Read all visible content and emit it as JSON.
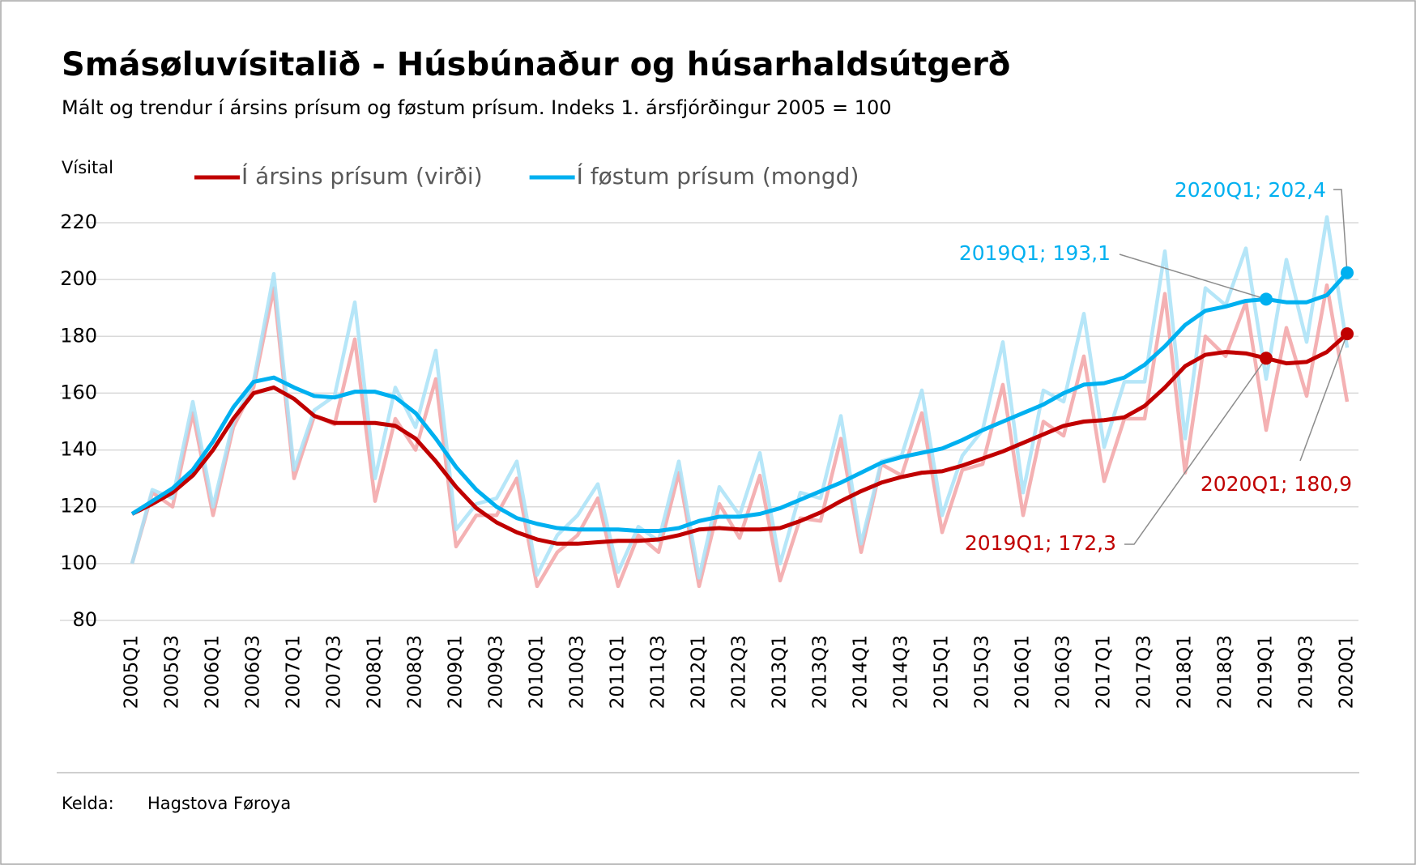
{
  "chart_data": {
    "type": "line",
    "title": "Smásøluvísitalið - Húsbúnaður og húsarhaldsútgerð",
    "subtitle": "Mált og trendur í ársins prísum og føstum prísum. Indeks 1. ársfjórðingur 2005 = 100",
    "y_label": "Vísital",
    "source_label": "Kelda:",
    "source": "Hagstova Føroya",
    "categories": [
      "2005Q1",
      null,
      "2005Q3",
      null,
      "2006Q1",
      null,
      "2006Q3",
      null,
      "2007Q1",
      null,
      "2007Q3",
      null,
      "2008Q1",
      null,
      "2008Q3",
      null,
      "2009Q1",
      null,
      "2009Q3",
      null,
      "2010Q1",
      null,
      "2010Q3",
      null,
      "2011Q1",
      null,
      "2011Q3",
      null,
      "2012Q1",
      null,
      "2012Q3",
      null,
      "2013Q1",
      null,
      "2013Q3",
      null,
      "2014Q1",
      null,
      "2014Q3",
      null,
      "2015Q1",
      null,
      "2015Q3",
      null,
      "2016Q1",
      null,
      "2016Q3",
      null,
      "2017Q1",
      null,
      "2017Q3",
      null,
      "2018Q1",
      null,
      "2018Q3",
      null,
      "2019Q1",
      null,
      "2019Q3",
      null,
      "2020Q1"
    ],
    "series": [
      {
        "color": "#f2a3a6",
        "values": [
          100,
          125,
          120,
          153,
          117,
          148,
          162,
          197,
          130,
          152,
          149,
          179,
          122,
          151,
          140,
          165,
          106,
          117,
          117,
          130,
          92,
          104,
          110,
          123,
          92,
          110,
          104,
          132,
          92,
          121,
          109,
          131,
          94,
          116,
          115,
          144,
          104,
          135,
          131,
          153,
          111,
          133,
          135,
          163,
          117,
          150,
          145,
          173,
          129,
          151,
          151,
          195,
          132,
          180,
          173,
          192,
          147,
          183,
          159,
          198,
          157
        ]
      },
      {
        "color": "#a9e2f7",
        "values": [
          100,
          126,
          123,
          157,
          120,
          150,
          164,
          202,
          133,
          154,
          159,
          192,
          130,
          162,
          148,
          175,
          112,
          121,
          123,
          136,
          96,
          110,
          117,
          128,
          97,
          113,
          108,
          136,
          95,
          127,
          117,
          139,
          100,
          125,
          123,
          152,
          107,
          136,
          138,
          161,
          117,
          138,
          147,
          178,
          125,
          161,
          157,
          188,
          141,
          164,
          164,
          210,
          144,
          197,
          191,
          211,
          165,
          207,
          178,
          222,
          176
        ]
      },
      {
        "name": "Í ársins prísum (virði)",
        "color": "#c00000",
        "values": [
          117.5,
          121,
          125,
          131,
          140,
          151,
          160,
          162,
          158,
          152,
          149.5,
          149.5,
          149.5,
          148.5,
          144,
          136,
          127,
          119.5,
          114.5,
          111,
          108.5,
          107,
          107,
          107.5,
          108,
          108,
          108.5,
          110,
          112,
          112.5,
          112,
          112,
          112.5,
          115,
          118,
          122,
          125.5,
          128.5,
          130.5,
          132,
          132.5,
          134.5,
          137,
          139.5,
          142.5,
          145.5,
          148.5,
          150,
          150.5,
          151.5,
          155.5,
          162,
          169.5,
          173.5,
          174.5,
          174,
          172.3,
          170.5,
          171,
          174.5,
          180.9
        ]
      },
      {
        "name": "Í føstum prísum (mongd)",
        "color": "#00b0f0",
        "values": [
          117.5,
          122,
          126.5,
          133,
          143,
          155,
          164,
          165.5,
          162,
          159,
          158.5,
          160.5,
          160.5,
          158.5,
          153,
          144,
          134,
          126,
          120,
          116,
          114,
          112.5,
          112,
          112,
          112,
          111.5,
          111.5,
          112.5,
          115,
          116.5,
          116.5,
          117.5,
          119.5,
          122.5,
          125.5,
          128.5,
          132,
          135.5,
          137.5,
          139,
          140.5,
          143.5,
          147,
          150,
          153,
          156,
          160,
          163,
          163.5,
          165.5,
          170,
          176.5,
          184,
          189,
          190.5,
          192.5,
          193.1,
          192,
          192,
          194.5,
          202.4
        ]
      }
    ],
    "annotations": [
      "2020Q1; 202,4",
      "2019Q1; 193,1",
      "2020Q1; 180,9",
      "2019Q1; 172,3"
    ],
    "ylim": [
      80,
      220
    ],
    "yticks": [
      80,
      100,
      120,
      140,
      160,
      180,
      200,
      220
    ],
    "grid": true
  }
}
